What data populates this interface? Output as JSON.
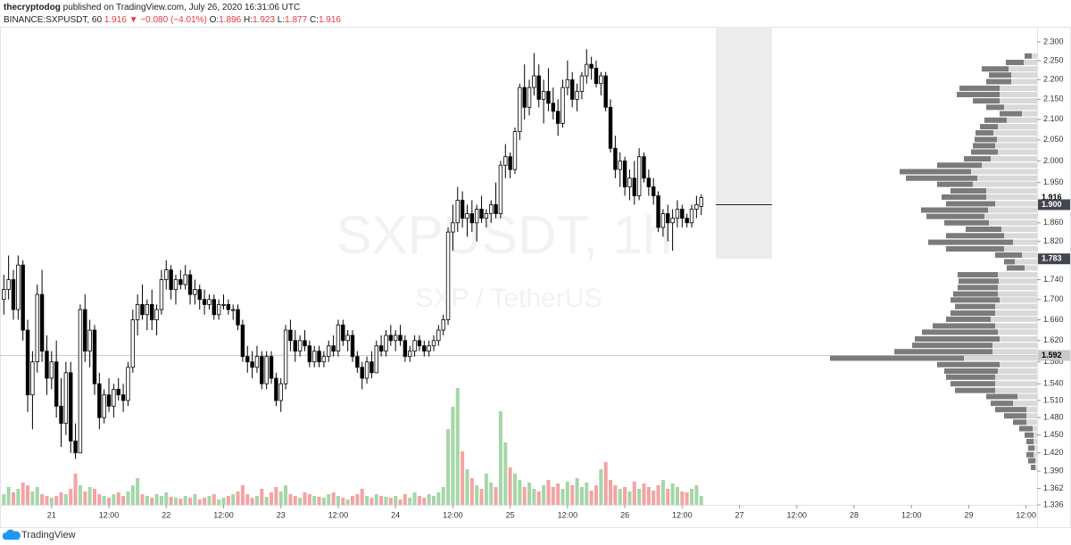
{
  "header": {
    "author": "thecryptodog",
    "published": "published on TradingView.com, July 26, 2020 16:31:06 UTC",
    "symbol": "BINANCE:SXPUSDT, 60",
    "last": 1.916,
    "change": "▼ −0.080 (−4.01%)",
    "open_label": "O:",
    "open": 1.896,
    "high_label": "H:",
    "high": 1.923,
    "low_label": "L:",
    "low": 1.877,
    "close_label": "C:",
    "close": 1.916
  },
  "watermark": {
    "symbol": "SXPUSDT, 1h",
    "description": "SXP / TetherUS"
  },
  "footer": {
    "brand": "TradingView"
  },
  "chart_data": {
    "type": "candlestick",
    "log_scale": true,
    "grid": false,
    "candle_up_color": "#ffffff",
    "candle_down_color": "#000000",
    "volume_up_color": "#a5d6a7",
    "volume_down_color": "#f4a3a3",
    "profile_dark_color": "#7b7b7b",
    "profile_light_color": "#d9d9d9",
    "x": [
      -10,
      -9,
      -8,
      -7,
      -6,
      -5,
      -4,
      -3,
      -2,
      -1,
      0,
      1,
      2,
      3,
      4,
      5,
      6,
      7,
      8,
      9,
      10,
      11,
      12,
      13,
      14,
      15,
      16,
      17,
      18,
      19,
      20,
      21,
      22,
      23,
      24,
      25,
      26,
      27,
      28,
      29,
      30,
      31,
      32,
      33,
      34,
      35,
      36,
      37,
      38,
      39,
      40,
      41,
      42,
      43,
      44,
      45,
      46,
      47,
      48,
      49,
      50,
      51,
      52,
      53,
      54,
      55,
      56,
      57,
      58,
      59,
      60,
      61,
      62,
      63,
      64,
      65,
      66,
      67,
      68,
      69,
      70,
      71,
      72,
      73,
      74,
      75,
      76,
      77,
      78,
      79,
      80,
      81,
      82,
      83,
      84,
      85,
      86,
      87,
      88,
      89,
      90,
      91,
      92,
      93,
      94,
      95,
      96,
      97,
      98,
      99,
      100,
      101,
      102,
      103,
      104,
      105,
      106,
      107,
      108,
      109,
      110,
      111,
      112,
      113,
      114,
      115,
      116,
      117,
      118,
      119,
      120,
      121,
      122,
      123,
      124,
      125,
      126,
      127,
      128,
      129,
      130,
      131,
      132,
      133,
      134,
      135,
      136
    ],
    "open": [
      1.7,
      1.72,
      1.74,
      1.68,
      1.77,
      1.64,
      1.52,
      1.58,
      1.71,
      1.6,
      1.55,
      1.58,
      1.5,
      1.47,
      1.56,
      1.44,
      1.42,
      1.68,
      1.6,
      1.64,
      1.54,
      1.48,
      1.52,
      1.5,
      1.53,
      1.52,
      1.51,
      1.57,
      1.66,
      1.69,
      1.67,
      1.69,
      1.66,
      1.68,
      1.74,
      1.76,
      1.72,
      1.74,
      1.73,
      1.75,
      1.71,
      1.72,
      1.7,
      1.69,
      1.7,
      1.67,
      1.69,
      1.69,
      1.68,
      1.68,
      1.65,
      1.59,
      1.58,
      1.57,
      1.59,
      1.54,
      1.59,
      1.55,
      1.51,
      1.54,
      1.64,
      1.62,
      1.6,
      1.62,
      1.61,
      1.58,
      1.6,
      1.58,
      1.59,
      1.61,
      1.6,
      1.65,
      1.62,
      1.63,
      1.59,
      1.57,
      1.55,
      1.58,
      1.56,
      1.61,
      1.6,
      1.63,
      1.62,
      1.63,
      1.62,
      1.59,
      1.6,
      1.62,
      1.61,
      1.6,
      1.61,
      1.62,
      1.64,
      1.66,
      1.84,
      1.86,
      1.91,
      1.87,
      1.88,
      1.86,
      1.89,
      1.87,
      1.88,
      1.9,
      1.88,
      1.99,
      2.01,
      1.98,
      2.07,
      2.18,
      2.13,
      2.18,
      2.21,
      2.15,
      2.17,
      2.14,
      2.12,
      2.09,
      2.18,
      2.2,
      2.15,
      2.17,
      2.21,
      2.24,
      2.23,
      2.19,
      2.21,
      2.13,
      2.03,
      1.98,
      2.0,
      1.94,
      1.96,
      1.92,
      2.01,
      1.96,
      1.94,
      1.92,
      1.85,
      1.88,
      1.86,
      1.87,
      1.89,
      1.87,
      1.86,
      1.89,
      1.896
    ],
    "high": [
      1.75,
      1.79,
      1.76,
      1.79,
      1.78,
      1.66,
      1.6,
      1.73,
      1.76,
      1.63,
      1.6,
      1.62,
      1.55,
      1.58,
      1.58,
      1.47,
      1.69,
      1.71,
      1.66,
      1.65,
      1.56,
      1.53,
      1.55,
      1.54,
      1.55,
      1.54,
      1.58,
      1.68,
      1.71,
      1.73,
      1.7,
      1.72,
      1.69,
      1.76,
      1.78,
      1.77,
      1.75,
      1.76,
      1.77,
      1.76,
      1.74,
      1.73,
      1.72,
      1.71,
      1.71,
      1.7,
      1.71,
      1.7,
      1.69,
      1.69,
      1.66,
      1.61,
      1.6,
      1.61,
      1.6,
      1.6,
      1.6,
      1.56,
      1.55,
      1.65,
      1.66,
      1.64,
      1.63,
      1.64,
      1.62,
      1.61,
      1.61,
      1.6,
      1.62,
      1.63,
      1.66,
      1.66,
      1.64,
      1.64,
      1.6,
      1.58,
      1.59,
      1.6,
      1.62,
      1.63,
      1.64,
      1.65,
      1.64,
      1.65,
      1.63,
      1.61,
      1.63,
      1.63,
      1.62,
      1.62,
      1.63,
      1.65,
      1.67,
      1.85,
      1.9,
      1.94,
      1.93,
      1.9,
      1.91,
      1.9,
      1.92,
      1.89,
      1.91,
      1.95,
      2.0,
      2.04,
      2.02,
      2.08,
      2.19,
      2.24,
      2.2,
      2.27,
      2.24,
      2.2,
      2.23,
      2.18,
      2.15,
      2.2,
      2.25,
      2.22,
      2.19,
      2.22,
      2.28,
      2.26,
      2.25,
      2.22,
      2.22,
      2.15,
      2.06,
      2.02,
      2.01,
      1.98,
      2.0,
      2.03,
      2.02,
      1.98,
      1.96,
      1.93,
      1.89,
      1.9,
      1.89,
      1.91,
      1.9,
      1.88,
      1.9,
      1.92,
      1.923
    ],
    "low": [
      1.67,
      1.7,
      1.66,
      1.66,
      1.62,
      1.49,
      1.46,
      1.56,
      1.58,
      1.52,
      1.53,
      1.48,
      1.43,
      1.45,
      1.42,
      1.41,
      1.42,
      1.58,
      1.57,
      1.52,
      1.46,
      1.47,
      1.49,
      1.48,
      1.51,
      1.49,
      1.5,
      1.56,
      1.63,
      1.66,
      1.64,
      1.64,
      1.63,
      1.67,
      1.72,
      1.7,
      1.69,
      1.72,
      1.72,
      1.69,
      1.69,
      1.68,
      1.67,
      1.68,
      1.66,
      1.66,
      1.68,
      1.67,
      1.66,
      1.64,
      1.58,
      1.56,
      1.55,
      1.56,
      1.53,
      1.53,
      1.54,
      1.5,
      1.49,
      1.53,
      1.6,
      1.58,
      1.59,
      1.6,
      1.57,
      1.57,
      1.57,
      1.57,
      1.58,
      1.59,
      1.59,
      1.61,
      1.6,
      1.58,
      1.56,
      1.53,
      1.54,
      1.55,
      1.56,
      1.59,
      1.59,
      1.61,
      1.6,
      1.61,
      1.58,
      1.58,
      1.59,
      1.6,
      1.59,
      1.59,
      1.6,
      1.61,
      1.63,
      1.65,
      1.8,
      1.84,
      1.85,
      1.83,
      1.84,
      1.82,
      1.86,
      1.85,
      1.86,
      1.87,
      1.87,
      1.96,
      1.96,
      1.97,
      2.05,
      2.1,
      2.11,
      2.16,
      2.13,
      2.09,
      2.12,
      2.1,
      2.06,
      2.08,
      2.16,
      2.13,
      2.12,
      2.15,
      2.19,
      2.2,
      2.18,
      2.16,
      2.12,
      2.02,
      1.96,
      1.94,
      1.92,
      1.91,
      1.9,
      1.91,
      1.95,
      1.92,
      1.9,
      1.84,
      1.83,
      1.82,
      1.8,
      1.85,
      1.85,
      1.85,
      1.85,
      1.87,
      1.877
    ],
    "close": [
      1.72,
      1.74,
      1.68,
      1.77,
      1.64,
      1.52,
      1.58,
      1.71,
      1.6,
      1.55,
      1.58,
      1.5,
      1.47,
      1.56,
      1.44,
      1.42,
      1.68,
      1.6,
      1.64,
      1.54,
      1.48,
      1.52,
      1.5,
      1.53,
      1.52,
      1.51,
      1.57,
      1.66,
      1.69,
      1.67,
      1.69,
      1.66,
      1.68,
      1.74,
      1.76,
      1.72,
      1.74,
      1.73,
      1.75,
      1.71,
      1.72,
      1.7,
      1.69,
      1.7,
      1.67,
      1.69,
      1.69,
      1.68,
      1.68,
      1.65,
      1.59,
      1.58,
      1.57,
      1.59,
      1.54,
      1.59,
      1.55,
      1.51,
      1.54,
      1.64,
      1.62,
      1.6,
      1.62,
      1.61,
      1.58,
      1.6,
      1.58,
      1.59,
      1.61,
      1.6,
      1.65,
      1.62,
      1.63,
      1.59,
      1.57,
      1.55,
      1.58,
      1.56,
      1.61,
      1.6,
      1.63,
      1.62,
      1.63,
      1.62,
      1.59,
      1.6,
      1.62,
      1.61,
      1.6,
      1.61,
      1.62,
      1.64,
      1.66,
      1.84,
      1.86,
      1.91,
      1.87,
      1.88,
      1.86,
      1.89,
      1.87,
      1.88,
      1.9,
      1.88,
      1.99,
      2.01,
      1.98,
      2.07,
      2.18,
      2.13,
      2.18,
      2.21,
      2.15,
      2.17,
      2.14,
      2.12,
      2.09,
      2.18,
      2.2,
      2.15,
      2.17,
      2.21,
      2.24,
      2.23,
      2.19,
      2.21,
      2.13,
      2.03,
      1.98,
      2.0,
      1.94,
      1.96,
      1.92,
      2.01,
      1.96,
      1.94,
      1.92,
      1.85,
      1.88,
      1.86,
      1.87,
      1.89,
      1.87,
      1.86,
      1.89,
      1.9,
      1.916
    ],
    "volume": [
      12,
      20,
      14,
      18,
      25,
      22,
      15,
      20,
      12,
      10,
      8,
      10,
      14,
      12,
      18,
      35,
      22,
      15,
      20,
      18,
      12,
      10,
      8,
      12,
      14,
      10,
      15,
      22,
      30,
      12,
      10,
      8,
      12,
      10,
      14,
      9,
      8,
      7,
      10,
      8,
      12,
      6,
      8,
      10,
      12,
      6,
      8,
      10,
      12,
      15,
      22,
      12,
      8,
      10,
      18,
      9,
      14,
      20,
      15,
      22,
      12,
      10,
      8,
      14,
      12,
      10,
      9,
      8,
      12,
      14,
      10,
      8,
      6,
      10,
      12,
      18,
      10,
      8,
      12,
      10,
      9,
      8,
      10,
      6,
      12,
      8,
      14,
      10,
      8,
      12,
      10,
      14,
      20,
      85,
      110,
      131,
      60,
      40,
      30,
      22,
      18,
      35,
      25,
      20,
      105,
      70,
      42,
      35,
      28,
      20,
      25,
      18,
      15,
      22,
      28,
      20,
      24,
      18,
      26,
      22,
      30,
      20,
      25,
      16,
      22,
      40,
      48,
      28,
      22,
      18,
      20,
      15,
      26,
      18,
      24,
      20,
      16,
      22,
      28,
      18,
      24,
      20,
      15,
      14,
      18,
      22,
      10
    ],
    "xlim": [
      -10.8,
      206.3
    ],
    "xticks": [
      {
        "value": 0,
        "label": "21"
      },
      {
        "value": 12,
        "label": "12:00"
      },
      {
        "value": 24,
        "label": "22"
      },
      {
        "value": 36,
        "label": "12:00"
      },
      {
        "value": 48,
        "label": "23"
      },
      {
        "value": 60,
        "label": "12:00"
      },
      {
        "value": 72,
        "label": "24"
      },
      {
        "value": 84,
        "label": "12:00"
      },
      {
        "value": 96,
        "label": "25"
      },
      {
        "value": 108,
        "label": "12:00"
      },
      {
        "value": 120,
        "label": "26"
      },
      {
        "value": 132,
        "label": "12:00"
      },
      {
        "value": 144,
        "label": "27"
      },
      {
        "value": 156,
        "label": "12:00"
      },
      {
        "value": 168,
        "label": "28"
      },
      {
        "value": 180,
        "label": "12:00"
      },
      {
        "value": 192,
        "label": "29"
      },
      {
        "value": 204,
        "label": "12:00"
      }
    ],
    "ylim": [
      1.336,
      2.341
    ],
    "yticks": [
      {
        "value": 2.3,
        "label": "2.300"
      },
      {
        "value": 2.25,
        "label": "2.250"
      },
      {
        "value": 2.2,
        "label": "2.200"
      },
      {
        "value": 2.15,
        "label": "2.150"
      },
      {
        "value": 2.1,
        "label": "2.100"
      },
      {
        "value": 2.05,
        "label": "2.050"
      },
      {
        "value": 2.0,
        "label": "2.000"
      },
      {
        "value": 1.95,
        "label": "1.950"
      },
      {
        "value": 1.86,
        "label": "1.860"
      },
      {
        "value": 1.82,
        "label": "1.820"
      },
      {
        "value": 1.74,
        "label": "1.740"
      },
      {
        "value": 1.7,
        "label": "1.700"
      },
      {
        "value": 1.66,
        "label": "1.660"
      },
      {
        "value": 1.62,
        "label": "1.620"
      },
      {
        "value": 1.58,
        "label": "1.580"
      },
      {
        "value": 1.54,
        "label": "1.540"
      },
      {
        "value": 1.51,
        "label": "1.510"
      },
      {
        "value": 1.48,
        "label": "1.480"
      },
      {
        "value": 1.45,
        "label": "1.450"
      },
      {
        "value": 1.42,
        "label": "1.420"
      },
      {
        "value": 1.39,
        "label": "1.390"
      },
      1.362,
      1.336
    ],
    "last_price": 1.916,
    "range_box": {
      "top": {
        "value": 1.9,
        "label": "1.900"
      },
      "bottom": 1.783
    },
    "poc": 1.592,
    "volume_profile": {
      "prices": [
        2.262,
        2.245,
        2.228,
        2.212,
        2.195,
        2.178,
        2.162,
        2.146,
        2.13,
        2.114,
        2.098,
        2.082,
        2.067,
        2.051,
        2.036,
        2.021,
        2.005,
        1.99,
        1.975,
        1.96,
        1.946,
        1.931,
        1.917,
        1.902,
        1.888,
        1.874,
        1.86,
        1.846,
        1.832,
        1.818,
        1.804,
        1.791,
        1.777,
        1.764,
        1.75,
        1.737,
        1.724,
        1.711,
        1.699,
        1.686,
        1.673,
        1.661,
        1.648,
        1.636,
        1.623,
        1.611,
        1.599,
        1.587,
        1.575,
        1.563,
        1.552,
        1.54,
        1.528,
        1.517,
        1.505,
        1.494,
        1.483,
        1.472,
        1.461,
        1.45,
        1.439,
        1.428,
        1.417,
        1.407,
        1.396
      ],
      "light": [
        6,
        15,
        32,
        29,
        29,
        42,
        42,
        42,
        37,
        17,
        34,
        44,
        49,
        45,
        47,
        44,
        52,
        62,
        74,
        67,
        72,
        57,
        57,
        47,
        55,
        59,
        54,
        40,
        37,
        27,
        37,
        17,
        25,
        14,
        44,
        43,
        44,
        44,
        42,
        47,
        47,
        52,
        47,
        44,
        42,
        50,
        50,
        82,
        42,
        44,
        47,
        47,
        47,
        22,
        27,
        12,
        12,
        12,
        5,
        4,
        4,
        3,
        4,
        2,
        2
      ],
      "dark": [
        8,
        20,
        30,
        25,
        28,
        45,
        48,
        30,
        20,
        25,
        25,
        20,
        20,
        25,
        25,
        30,
        30,
        50,
        80,
        80,
        40,
        40,
        50,
        55,
        75,
        65,
        50,
        40,
        65,
        95,
        65,
        30,
        12,
        20,
        45,
        45,
        45,
        50,
        55,
        45,
        50,
        50,
        70,
        85,
        95,
        90,
        110,
        150,
        70,
        60,
        55,
        50,
        45,
        35,
        25,
        35,
        25,
        15,
        15,
        10,
        8,
        7,
        8,
        8,
        5
      ]
    }
  }
}
